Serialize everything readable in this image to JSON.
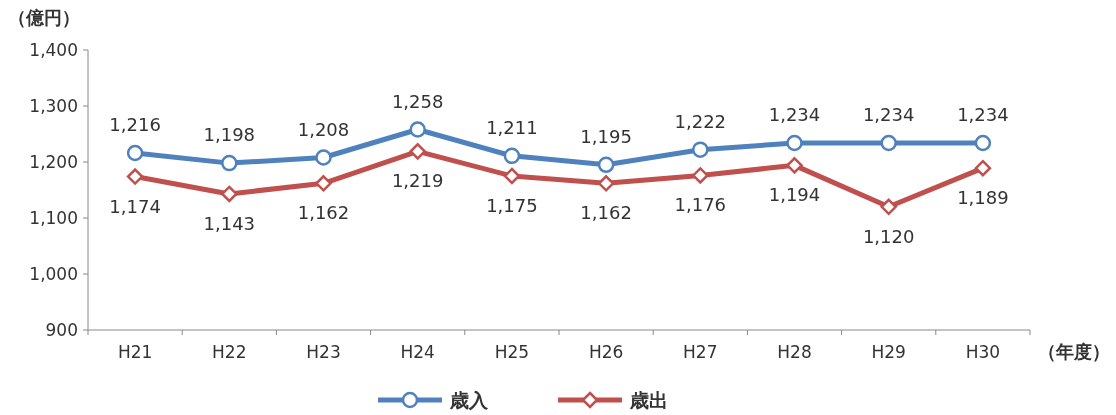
{
  "chart_data": {
    "type": "line",
    "ylabel": "（億円）",
    "xlabel": "（年度）",
    "categories": [
      "H21",
      "H22",
      "H23",
      "H24",
      "H25",
      "H26",
      "H27",
      "H28",
      "H29",
      "H30"
    ],
    "series": [
      {
        "name": "歳入",
        "color": "#4f81bd",
        "marker": "circle",
        "values": [
          1216,
          1198,
          1208,
          1258,
          1211,
          1195,
          1222,
          1234,
          1234,
          1234
        ],
        "value_labels": [
          "1,216",
          "1,198",
          "1,208",
          "1,258",
          "1,211",
          "1,195",
          "1,222",
          "1,234",
          "1,234",
          "1,234"
        ]
      },
      {
        "name": "歳出",
        "color": "#c0504d",
        "marker": "diamond",
        "values": [
          1174,
          1143,
          1162,
          1219,
          1175,
          1162,
          1176,
          1194,
          1120,
          1189
        ],
        "value_labels": [
          "1,174",
          "1,143",
          "1,162",
          "1,219",
          "1,175",
          "1,162",
          "1,176",
          "1,194",
          "1,120",
          "1,189"
        ]
      }
    ],
    "ylim": [
      900,
      1400
    ],
    "yticks": [
      {
        "value": 900,
        "label": "900"
      },
      {
        "value": 1000,
        "label": "1,000"
      },
      {
        "value": 1100,
        "label": "1,100"
      },
      {
        "value": 1200,
        "label": "1,200"
      },
      {
        "value": 1300,
        "label": "1,300"
      },
      {
        "value": 1400,
        "label": "1,400"
      }
    ],
    "legend": "bottom",
    "line_style": "solid"
  }
}
